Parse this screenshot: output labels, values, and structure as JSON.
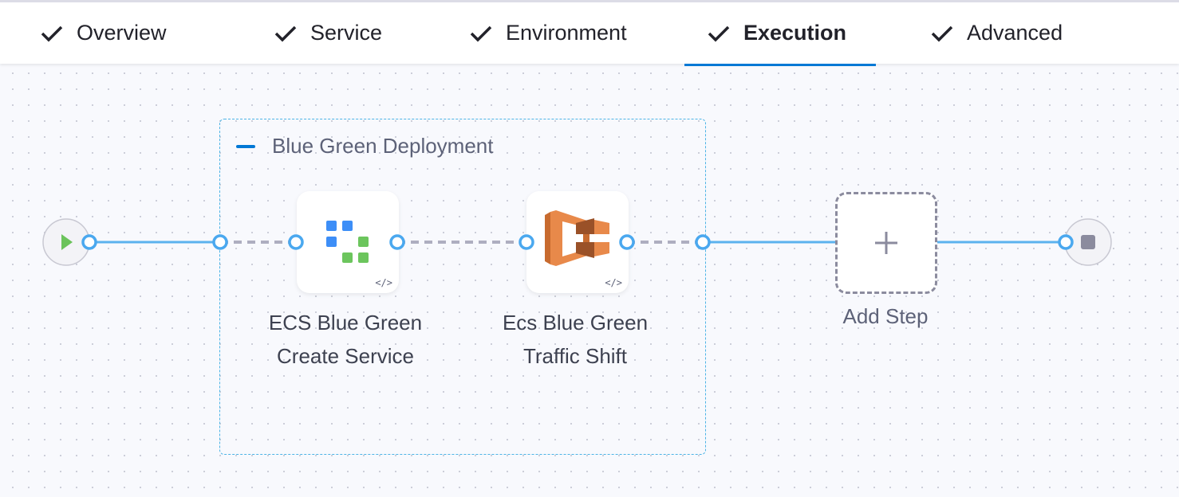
{
  "tabs": [
    {
      "label": "Overview",
      "icon": "check-icon",
      "completed": true
    },
    {
      "label": "Service",
      "icon": "check-icon",
      "completed": true
    },
    {
      "label": "Environment",
      "icon": "check-icon",
      "completed": true
    },
    {
      "label": "Execution",
      "icon": "check-icon",
      "completed": true,
      "active": true
    },
    {
      "label": "Advanced",
      "icon": "check-icon",
      "completed": true
    }
  ],
  "pipeline": {
    "group": {
      "title": "Blue Green Deployment",
      "collapse_icon": "minus-icon"
    },
    "steps": [
      {
        "line1": "ECS Blue Green",
        "line2": "Create Service",
        "icon": "ecs-blue-green-icon",
        "badge": "</>"
      },
      {
        "line1": "Ecs Blue Green",
        "line2": "Traffic Shift",
        "icon": "aws-ecs-icon",
        "badge": "</>"
      }
    ],
    "add_step": {
      "label": "Add Step",
      "icon": "plus-icon"
    },
    "start_icon": "play-icon",
    "end_icon": "stop-icon"
  },
  "colors": {
    "accent": "#0278d5",
    "link_line": "#5bb2ee",
    "dashed_link": "#aeaec0",
    "start_green": "#6bc35b",
    "aws_orange": "#e8894a"
  }
}
